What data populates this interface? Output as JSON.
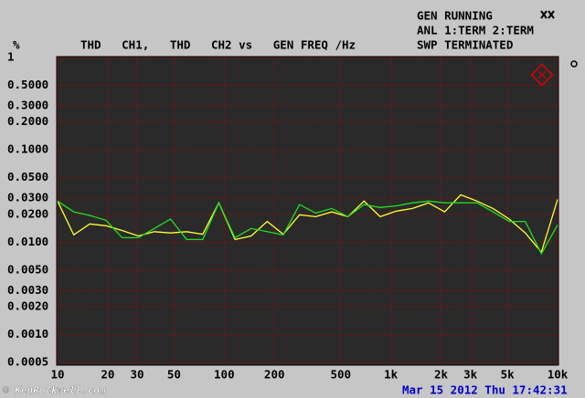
{
  "chart_data": {
    "type": "line",
    "title": "THD   CH1,   THD   CH2 vs   GEN FREQ /Hz",
    "y_unit": "%",
    "status": [
      "GEN RUNNING",
      "ANL 1:TERM 2:TERM",
      "SWP TERMINATED"
    ],
    "timestamp": "Mar 15 2012 Thu 17:42:31",
    "watermark": "© KenRockwell.com",
    "xscale": "log",
    "yscale": "log",
    "grid": true,
    "xlim": [
      10,
      10000
    ],
    "ylim": [
      0.0005,
      1
    ],
    "xticks": [
      10,
      20,
      30,
      50,
      100,
      200,
      500,
      {
        "value": 1000,
        "label": "1k"
      },
      {
        "value": 2000,
        "label": "2k"
      },
      {
        "value": 3000,
        "label": "3k"
      },
      {
        "value": 5000,
        "label": "5k"
      },
      {
        "value": 10000,
        "label": "10k"
      }
    ],
    "yticks": [
      1,
      {
        "value": 0.5,
        "label": "0.5000"
      },
      {
        "value": 0.3,
        "label": "0.3000"
      },
      {
        "value": 0.2,
        "label": "0.2000"
      },
      {
        "value": 0.1,
        "label": "0.1000"
      },
      {
        "value": 0.05,
        "label": "0.0500"
      },
      {
        "value": 0.03,
        "label": "0.0300"
      },
      {
        "value": 0.02,
        "label": "0.0200"
      },
      {
        "value": 0.01,
        "label": "0.0100"
      },
      {
        "value": 0.005,
        "label": "0.0050"
      },
      {
        "value": 0.003,
        "label": "0.0030"
      },
      {
        "value": 0.002,
        "label": "0.0020"
      },
      {
        "value": 0.001,
        "label": "0.0010"
      },
      {
        "value": 0.0005,
        "label": "0.0005"
      }
    ],
    "x": [
      10,
      12.5,
      15.6,
      19.5,
      24.4,
      30.5,
      38.1,
      47.6,
      59.5,
      74.3,
      92.8,
      116,
      145,
      181,
      226,
      283,
      354,
      442,
      552,
      690,
      862,
      1077,
      1346,
      1682,
      2101,
      2627,
      3282,
      4101,
      5125,
      6404,
      8002,
      10000
    ],
    "series": [
      {
        "color": "#ffff33",
        "values": [
          0.0279,
          0.012,
          0.0158,
          0.0151,
          0.0134,
          0.0117,
          0.013,
          0.0126,
          0.013,
          0.0122,
          0.0267,
          0.0107,
          0.0117,
          0.0168,
          0.0122,
          0.0198,
          0.0189,
          0.0213,
          0.0189,
          0.0279,
          0.0189,
          0.0217,
          0.0232,
          0.0267,
          0.0213,
          0.0326,
          0.0279,
          0.0232,
          0.0178,
          0.0126,
          0.0078,
          0.0291
        ]
      },
      {
        "color": "#22dd22",
        "values": [
          0.0279,
          0.0213,
          0.0195,
          0.0173,
          0.0112,
          0.0112,
          0.0141,
          0.0178,
          0.0107,
          0.0107,
          0.0267,
          0.0112,
          0.0141,
          0.013,
          0.012,
          0.0256,
          0.0207,
          0.0232,
          0.0189,
          0.0256,
          0.0238,
          0.0248,
          0.0267,
          0.0279,
          0.0267,
          0.0267,
          0.0267,
          0.0213,
          0.0168,
          0.0168,
          0.0075,
          0.0154
        ]
      }
    ]
  }
}
